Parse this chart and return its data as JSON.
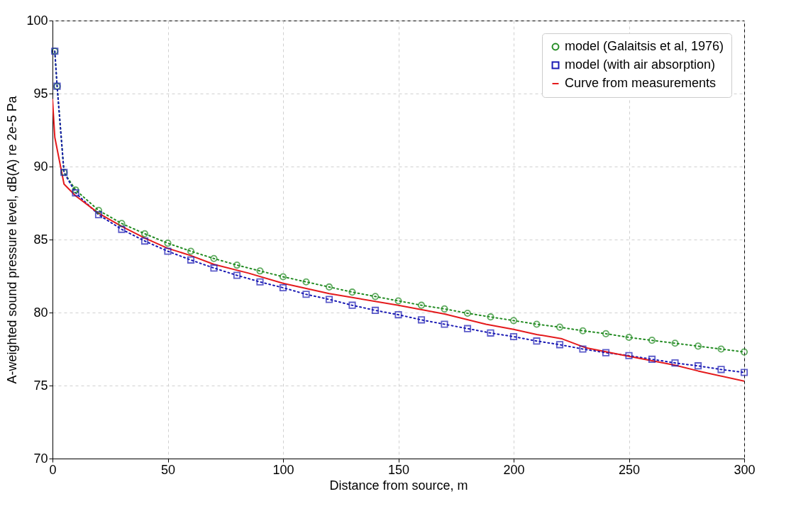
{
  "chart_data": {
    "type": "line",
    "xlabel": "Distance from source, m",
    "ylabel": "A-weighted sound pressure level, dB(A) re 2e-5 Pa",
    "xlim": [
      0,
      300
    ],
    "xticks": [
      0,
      50,
      100,
      150,
      200,
      250,
      300
    ],
    "ylim": [
      70,
      100
    ],
    "yticks": [
      70,
      75,
      80,
      85,
      90,
      95,
      100
    ],
    "grid": true,
    "legend": "top right",
    "series": [
      {
        "name": "model (Galaitsis et al, 1976)",
        "color": "#228b22",
        "marker": "circle",
        "line_style": "dotted",
        "x": [
          1,
          2,
          5,
          10,
          20,
          30,
          40,
          50,
          60,
          70,
          80,
          90,
          100,
          110,
          120,
          130,
          140,
          150,
          160,
          170,
          180,
          190,
          200,
          210,
          220,
          230,
          240,
          250,
          260,
          270,
          280,
          290,
          300
        ],
        "values": [
          97.9,
          95.5,
          89.6,
          88.4,
          87.0,
          86.1,
          85.4,
          84.75,
          84.2,
          83.7,
          83.25,
          82.85,
          82.45,
          82.1,
          81.75,
          81.4,
          81.1,
          80.8,
          80.5,
          80.25,
          79.95,
          79.7,
          79.45,
          79.2,
          79.0,
          78.75,
          78.55,
          78.3,
          78.1,
          77.9,
          77.7,
          77.5,
          77.3
        ]
      },
      {
        "name": "model (with air absorption)",
        "color": "#1a1ab4",
        "marker": "square",
        "line_style": "dotted",
        "x": [
          1,
          2,
          5,
          10,
          20,
          30,
          40,
          50,
          60,
          70,
          80,
          90,
          100,
          110,
          120,
          130,
          140,
          150,
          160,
          170,
          180,
          190,
          200,
          210,
          220,
          230,
          240,
          250,
          260,
          270,
          280,
          290,
          300
        ],
        "values": [
          97.9,
          95.5,
          89.6,
          88.2,
          86.7,
          85.7,
          84.9,
          84.2,
          83.6,
          83.05,
          82.55,
          82.1,
          81.7,
          81.25,
          80.9,
          80.5,
          80.15,
          79.85,
          79.5,
          79.2,
          78.9,
          78.6,
          78.35,
          78.05,
          77.8,
          77.5,
          77.25,
          77.05,
          76.8,
          76.55,
          76.35,
          76.1,
          75.9
        ]
      },
      {
        "name": "Curve from measurements",
        "color": "#e41a1c",
        "marker": "none",
        "line_style": "solid",
        "x": [
          0,
          1,
          5,
          10,
          20,
          30,
          40,
          50,
          60,
          70,
          85,
          100,
          120,
          150,
          170,
          188,
          200,
          210,
          221,
          231,
          250,
          260,
          270,
          280,
          300
        ],
        "values": [
          94.6,
          92.0,
          88.8,
          88.0,
          86.8,
          85.9,
          85.1,
          84.4,
          83.9,
          83.3,
          82.7,
          82.0,
          81.3,
          80.5,
          79.9,
          79.2,
          78.85,
          78.5,
          78.2,
          77.6,
          77.0,
          76.7,
          76.4,
          76.0,
          75.3
        ]
      }
    ]
  }
}
